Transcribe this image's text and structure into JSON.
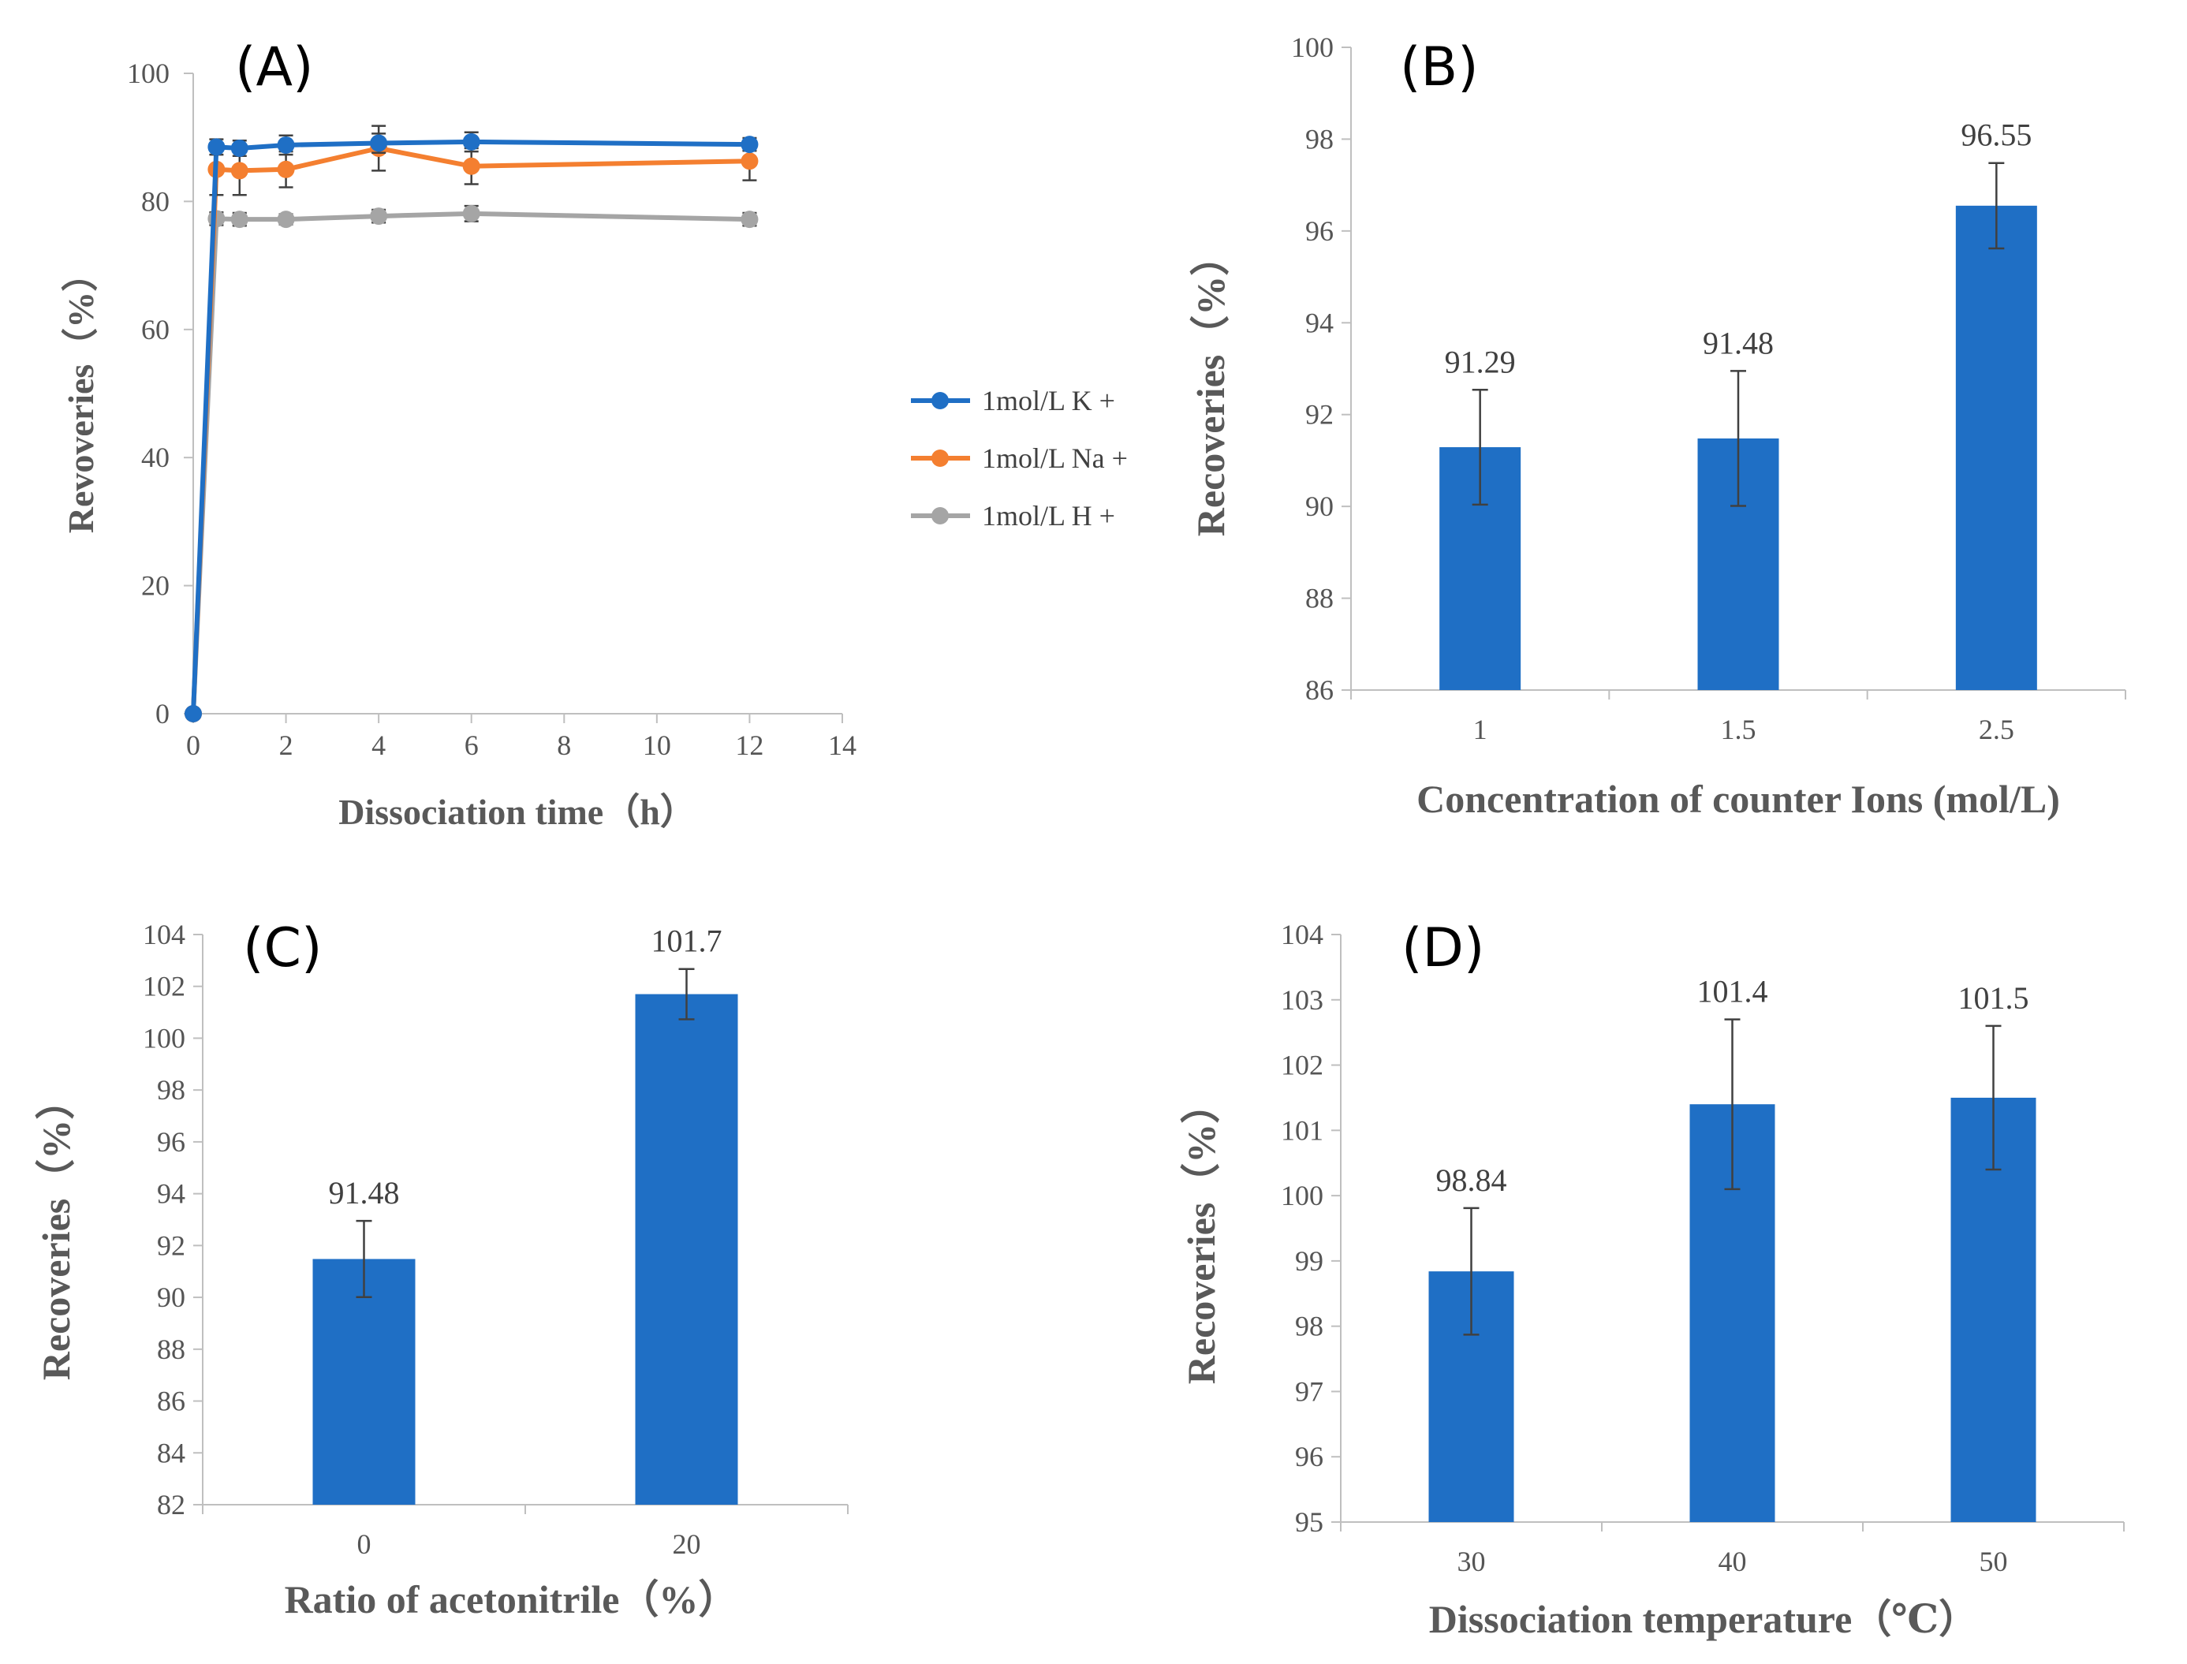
{
  "chart_data": [
    {
      "id": "A",
      "type": "line",
      "panel_label": "(A)",
      "xlabel": "Dissociation time（h）",
      "ylabel": "Revoveries（%）",
      "xlim": [
        0,
        14
      ],
      "ylim": [
        0,
        100
      ],
      "xticks": [
        "0",
        "2",
        "4",
        "6",
        "8",
        "10",
        "12",
        "14"
      ],
      "yticks": [
        "0",
        "20",
        "40",
        "60",
        "80",
        "100"
      ],
      "legend_position": "right",
      "series": [
        {
          "name": "1mol/L K +",
          "color": "#1f6fc5",
          "x": [
            0,
            0.5,
            1,
            2,
            4,
            6,
            12
          ],
          "y": [
            0,
            88.5,
            88.3,
            88.8,
            89.1,
            89.3,
            88.9
          ],
          "err": [
            0,
            1.2,
            1.2,
            1.5,
            1.5,
            1.5,
            1.0
          ]
        },
        {
          "name": "1mol/L Na +",
          "color": "#f47f30",
          "x": [
            0,
            0.5,
            1,
            2,
            4,
            6,
            12
          ],
          "y": [
            0,
            85.0,
            84.8,
            85.0,
            88.3,
            85.5,
            86.3
          ],
          "err": [
            0,
            4.0,
            3.8,
            2.8,
            3.5,
            2.8,
            3.0
          ]
        },
        {
          "name": "1mol/L H +",
          "color": "#a5a5a5",
          "x": [
            0,
            0.5,
            1,
            2,
            4,
            6,
            12
          ],
          "y": [
            0,
            77.3,
            77.2,
            77.2,
            77.7,
            78.1,
            77.2
          ],
          "err": [
            0,
            1.0,
            1.0,
            0.8,
            1.0,
            1.2,
            1.0
          ]
        }
      ]
    },
    {
      "id": "B",
      "type": "bar",
      "panel_label": "(B)",
      "xlabel": "Concentration of counter Ions (mol/L)",
      "ylabel": "Recoveries（%）",
      "ylim": [
        86,
        100
      ],
      "yticks": [
        "86",
        "88",
        "90",
        "92",
        "94",
        "96",
        "98",
        "100"
      ],
      "categories": [
        "1",
        "1.5",
        "2.5"
      ],
      "values": [
        91.29,
        91.48,
        96.55
      ],
      "data_labels": [
        "91.29",
        "91.48",
        "96.55"
      ],
      "err": [
        1.25,
        1.47,
        0.93
      ],
      "color": "#1f6fc5"
    },
    {
      "id": "C",
      "type": "bar",
      "panel_label": "(C)",
      "xlabel": "Ratio of acetonitrile（%）",
      "ylabel": "Recoveries（%）",
      "ylim": [
        82,
        104
      ],
      "yticks": [
        "82",
        "84",
        "86",
        "88",
        "90",
        "92",
        "94",
        "96",
        "98",
        "100",
        "102",
        "104"
      ],
      "categories": [
        "0",
        "20"
      ],
      "values": [
        91.48,
        101.7
      ],
      "data_labels": [
        "91.48",
        "101.7"
      ],
      "err": [
        1.47,
        0.97
      ],
      "color": "#1f6fc5"
    },
    {
      "id": "D",
      "type": "bar",
      "panel_label": "(D)",
      "xlabel": "Dissociation temperature（℃）",
      "ylabel": "Recoveries（%）",
      "ylim": [
        95,
        104
      ],
      "yticks": [
        "95",
        "96",
        "97",
        "98",
        "99",
        "100",
        "101",
        "102",
        "103",
        "104"
      ],
      "categories": [
        "30",
        "40",
        "50"
      ],
      "values": [
        98.84,
        101.4,
        101.5
      ],
      "data_labels": [
        "98.84",
        "101.4",
        "101.5"
      ],
      "err": [
        0.97,
        1.3,
        1.1
      ],
      "color": "#1f6fc5"
    }
  ]
}
